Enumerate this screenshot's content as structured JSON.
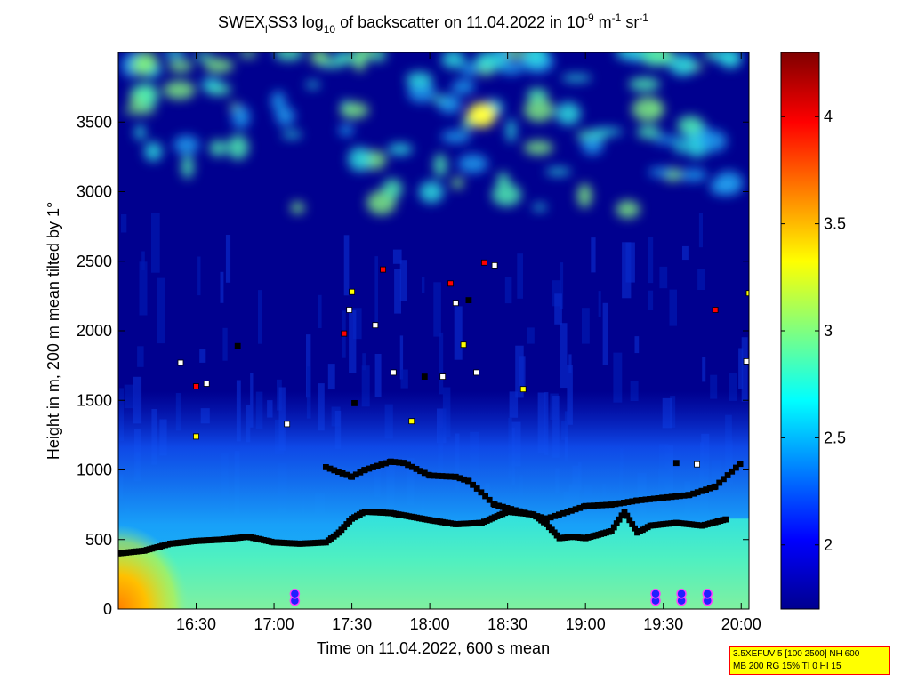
{
  "chart_data": {
    "type": "heatmap",
    "title": {
      "prefix": "SWEX",
      "sub": "l",
      "mid1": "SS3 log",
      "sub10": "10",
      "mid2": " of backscatter on 11.04.2022 in 10",
      "sup1": "-9",
      "mid3": " m",
      "sup2": "-1",
      "mid4": " sr",
      "sup3": "-1"
    },
    "xlabel": "Time on 11.04.2022, 600 s mean",
    "ylabel": "Height in m, 200 m mean tilted by 1°",
    "x_ticks": [
      "16:30",
      "17:00",
      "17:30",
      "18:00",
      "18:30",
      "19:00",
      "19:30",
      "20:00"
    ],
    "x_range": [
      "16:00",
      "20:03"
    ],
    "y_ticks": [
      0,
      500,
      1000,
      1500,
      2000,
      2500,
      3000,
      3500
    ],
    "y_range": [
      0,
      4000
    ],
    "colorbar": {
      "ticks": [
        2,
        2.5,
        3,
        3.5,
        4
      ],
      "range": [
        1.7,
        4.3
      ],
      "colormap": "jet"
    },
    "layers": {
      "boundary_layer_top": [
        [
          "16:00",
          400
        ],
        [
          "16:10",
          420
        ],
        [
          "16:20",
          470
        ],
        [
          "16:30",
          490
        ],
        [
          "16:40",
          500
        ],
        [
          "16:50",
          520
        ],
        [
          "17:00",
          480
        ],
        [
          "17:10",
          470
        ],
        [
          "17:20",
          480
        ],
        [
          "17:25",
          550
        ],
        [
          "17:30",
          650
        ],
        [
          "17:35",
          700
        ],
        [
          "17:45",
          690
        ],
        [
          "18:00",
          640
        ],
        [
          "18:10",
          610
        ],
        [
          "18:20",
          620
        ],
        [
          "18:30",
          700
        ],
        [
          "18:40",
          680
        ],
        [
          "18:45",
          610
        ],
        [
          "18:50",
          510
        ],
        [
          "18:55",
          520
        ],
        [
          "19:00",
          510
        ],
        [
          "19:10",
          560
        ],
        [
          "19:15",
          700
        ],
        [
          "19:20",
          550
        ],
        [
          "19:25",
          600
        ],
        [
          "19:35",
          620
        ],
        [
          "19:45",
          600
        ],
        [
          "19:55",
          650
        ]
      ],
      "upper_layer": [
        [
          "17:20",
          1020
        ],
        [
          "17:30",
          950
        ],
        [
          "17:35",
          1000
        ],
        [
          "17:45",
          1060
        ],
        [
          "17:50",
          1050
        ],
        [
          "18:00",
          960
        ],
        [
          "18:10",
          950
        ],
        [
          "18:15",
          920
        ],
        [
          "18:25",
          750
        ],
        [
          "18:35",
          700
        ],
        [
          "18:45",
          650
        ],
        [
          "19:00",
          740
        ],
        [
          "19:10",
          750
        ],
        [
          "19:20",
          780
        ],
        [
          "19:30",
          800
        ],
        [
          "19:40",
          820
        ],
        [
          "19:50",
          880
        ],
        [
          "20:00",
          1050
        ]
      ],
      "scattered_detections": [
        [
          "16:24",
          1770
        ],
        [
          "16:30",
          1600
        ],
        [
          "16:34",
          1620
        ],
        [
          "16:30",
          1240
        ],
        [
          "16:46",
          1890
        ],
        [
          "17:05",
          1330
        ],
        [
          "17:27",
          1980
        ],
        [
          "17:29",
          2150
        ],
        [
          "17:30",
          2280
        ],
        [
          "17:31",
          1480
        ],
        [
          "17:39",
          2040
        ],
        [
          "17:42",
          2440
        ],
        [
          "17:46",
          1700
        ],
        [
          "17:53",
          1350
        ],
        [
          "17:58",
          1670
        ],
        [
          "18:05",
          1670
        ],
        [
          "18:08",
          2340
        ],
        [
          "18:10",
          2200
        ],
        [
          "18:13",
          1900
        ],
        [
          "18:15",
          2220
        ],
        [
          "18:18",
          1700
        ],
        [
          "18:21",
          2490
        ],
        [
          "18:25",
          2470
        ],
        [
          "18:36",
          1580
        ],
        [
          "19:35",
          1050
        ],
        [
          "19:43",
          1040
        ],
        [
          "19:50",
          2150
        ],
        [
          "20:02",
          1780
        ],
        [
          "20:03",
          2270
        ]
      ],
      "low_markers": [
        [
          "17:08",
          60
        ],
        [
          "17:08",
          110
        ],
        [
          "19:27",
          60
        ],
        [
          "19:27",
          110
        ],
        [
          "19:37",
          60
        ],
        [
          "19:37",
          110
        ],
        [
          "19:47",
          60
        ],
        [
          "19:47",
          110
        ]
      ]
    },
    "colors": {
      "background": "#00008f",
      "axes_frame": "#000000",
      "marker_red": "#ff0000",
      "marker_yellow": "#ffff00",
      "marker_white": "#ffffff",
      "marker_black": "#000000",
      "low_marker": "#2020ff"
    }
  },
  "info_box": {
    "line1": "3.5XEFUV 5 [100 2500] NH 600",
    "line2": "MB 200 RG 15% TI 0 HI 15"
  }
}
